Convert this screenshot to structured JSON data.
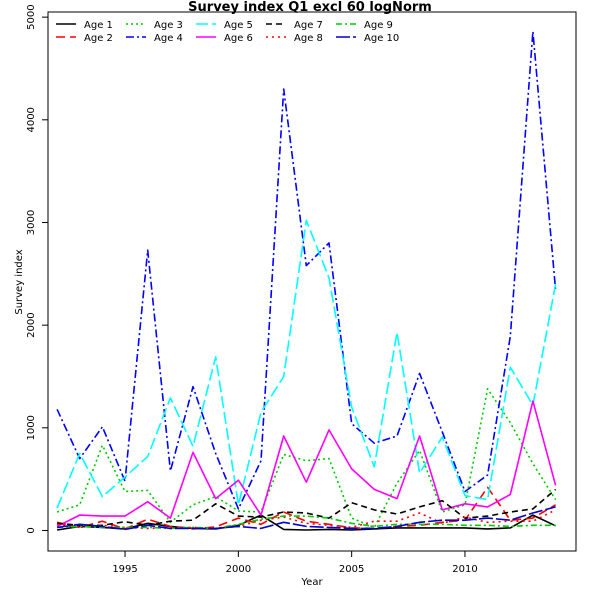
{
  "chart_data": {
    "type": "line",
    "title": "Survey index Q1 excl 60 logNorm",
    "xlabel": "Year",
    "ylabel": "Survey index",
    "xlim": [
      1991.6,
      2014.9
    ],
    "ylim": [
      -200,
      5050
    ],
    "x_ticks": [
      1995,
      2000,
      2005,
      2010
    ],
    "y_ticks": [
      0,
      1000,
      2000,
      3000,
      4000,
      5000
    ],
    "grid": false,
    "legend_placement": "top-left",
    "x": [
      1992,
      1993,
      1994,
      1995,
      1996,
      1997,
      1998,
      1999,
      2000,
      2001,
      2002,
      2003,
      2004,
      2005,
      2006,
      2007,
      2008,
      2009,
      2010,
      2011,
      2012,
      2013,
      2014
    ],
    "series": [
      {
        "name": "Age 1",
        "color": "#000000",
        "dash": "solid",
        "values": [
          5,
          40,
          30,
          15,
          70,
          40,
          20,
          15,
          50,
          150,
          10,
          5,
          10,
          5,
          15,
          25,
          25,
          25,
          25,
          15,
          25,
          150,
          45
        ]
      },
      {
        "name": "Age 2",
        "color": "#ff0000",
        "dash": "long",
        "values": [
          80,
          30,
          90,
          15,
          110,
          40,
          15,
          35,
          120,
          60,
          180,
          90,
          60,
          25,
          20,
          40,
          50,
          80,
          100,
          420,
          100,
          120,
          250
        ]
      },
      {
        "name": "Age 3",
        "color": "#00cc00",
        "dash": "dot",
        "values": [
          180,
          250,
          830,
          380,
          390,
          80,
          250,
          330,
          190,
          180,
          740,
          680,
          700,
          120,
          30,
          460,
          780,
          180,
          250,
          1380,
          1050,
          650,
          300
        ]
      },
      {
        "name": "Age 4",
        "color": "#0000ff",
        "dash": "dashdot",
        "values": [
          1180,
          700,
          1010,
          480,
          2730,
          580,
          1400,
          750,
          210,
          680,
          4300,
          2580,
          2800,
          1040,
          850,
          920,
          1530,
          960,
          380,
          540,
          1890,
          4860,
          2340
        ]
      },
      {
        "name": "Age 5",
        "color": "#00ffff",
        "dash": "longdash",
        "values": [
          220,
          750,
          330,
          520,
          720,
          1290,
          820,
          1690,
          250,
          1150,
          1500,
          3020,
          2460,
          1200,
          620,
          1930,
          560,
          910,
          340,
          300,
          1590,
          1220,
          2400
        ]
      },
      {
        "name": "Age 6",
        "color": "#ff00ff",
        "dash": "solid",
        "values": [
          40,
          150,
          140,
          140,
          280,
          120,
          760,
          310,
          490,
          150,
          920,
          470,
          980,
          600,
          400,
          310,
          920,
          200,
          260,
          230,
          350,
          1260,
          440
        ]
      },
      {
        "name": "Age 7",
        "color": "#000000",
        "dash": "dashed",
        "values": [
          70,
          50,
          50,
          85,
          50,
          90,
          100,
          260,
          140,
          130,
          180,
          170,
          120,
          270,
          200,
          160,
          230,
          290,
          120,
          140,
          180,
          210,
          400
        ]
      },
      {
        "name": "Age 8",
        "color": "#ff0000",
        "dash": "dotted",
        "values": [
          60,
          30,
          50,
          30,
          20,
          30,
          30,
          20,
          40,
          100,
          130,
          70,
          50,
          30,
          90,
          90,
          170,
          70,
          130,
          80,
          90,
          90,
          200
        ]
      },
      {
        "name": "Age 9",
        "color": "#00cc00",
        "dash": "dashdot2",
        "values": [
          30,
          40,
          30,
          30,
          30,
          20,
          30,
          20,
          60,
          110,
          140,
          140,
          120,
          70,
          40,
          60,
          60,
          60,
          50,
          50,
          40,
          50,
          50
        ]
      },
      {
        "name": "Age 10",
        "color": "#0000cc",
        "dash": "longdash2",
        "values": [
          30,
          60,
          40,
          10,
          50,
          20,
          20,
          20,
          40,
          20,
          80,
          40,
          30,
          20,
          20,
          40,
          80,
          100,
          100,
          120,
          100,
          170,
          230
        ]
      }
    ]
  }
}
